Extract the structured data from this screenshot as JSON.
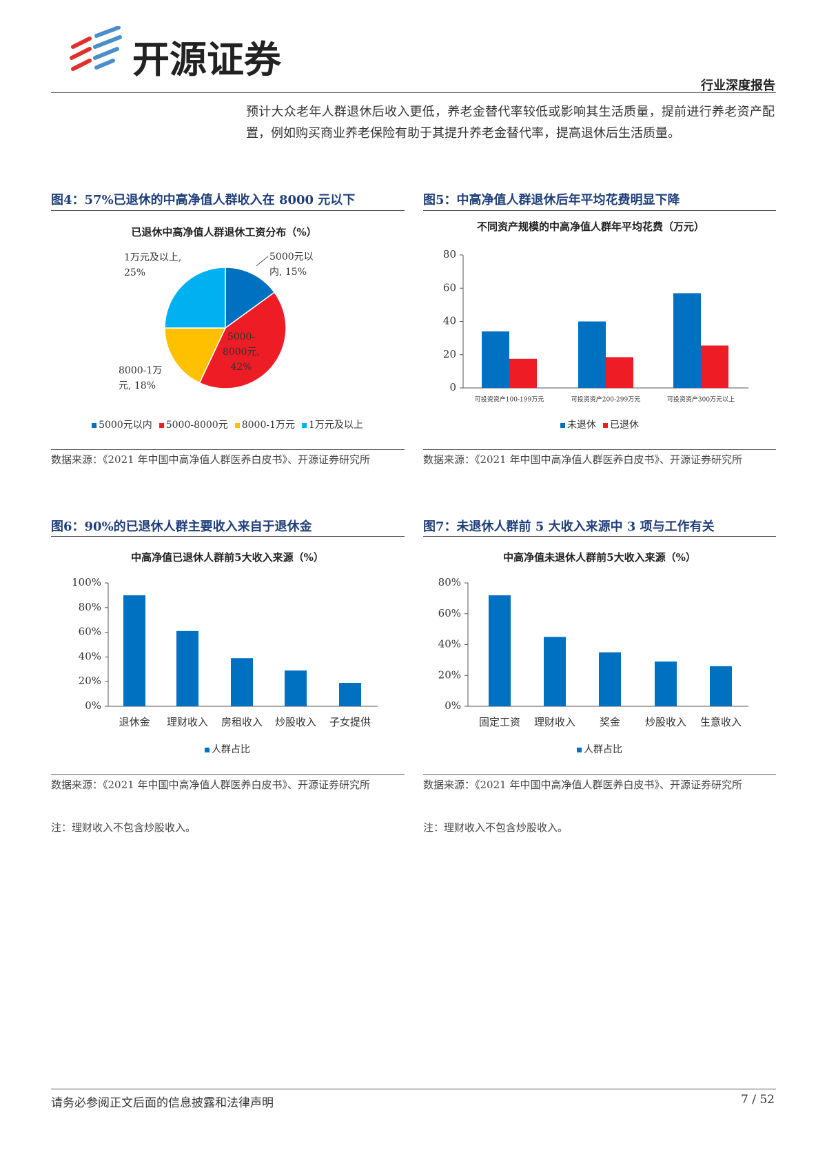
{
  "header": {
    "logo_text": "开源证券",
    "report_type": "行业深度报告"
  },
  "body": {
    "paragraph": "预计大众老年人群退休后收入更低，养老金替代率较低或影响其生活质量，提前进行养老资产配置，例如购买商业养老保险有助于其提升养老金替代率，提高退休后生活质量。"
  },
  "figures": [
    {
      "caption": "图4：57%已退休的中高净值人群收入在 8000 元以下",
      "source": "数据来源：《2021 年中国中高净值人群医养白皮书》、开源证券研究所"
    },
    {
      "caption": "图5：中高净值人群退休后年平均花费明显下降",
      "source": "数据来源：《2021 年中国中高净值人群医养白皮书》、开源证券研究所"
    },
    {
      "caption": "图6：90%的已退休人群主要收入来自于退休金",
      "source": "数据来源：《2021 年中国中高净值人群医养白皮书》、开源证券研究所",
      "note": "注：理财收入不包含炒股收入。"
    },
    {
      "caption": "图7：未退休人群前 5 大收入来源中 3 项与工作有关",
      "source": "数据来源：《2021 年中国中高净值人群医养白皮书》、开源证券研究所",
      "note": "注：理财收入不包含炒股收入。"
    }
  ],
  "chart_data": [
    {
      "type": "pie",
      "title": "已退休中高净值人群退休工资分布（%）",
      "categories": [
        "5000元以内",
        "5000-8000元",
        "8000-1万元",
        "1万元及以上"
      ],
      "values": [
        15,
        42,
        18,
        25
      ],
      "value_labels": [
        "5000元以内, 15%",
        "5000-8000元, 42%",
        "8000-1万元, 18%",
        "1万元及以上, 25%"
      ],
      "colors": [
        "#0070c0",
        "#ee1c25",
        "#ffc000",
        "#00b0f0"
      ]
    },
    {
      "type": "bar",
      "title": "不同资产规模的中高净值人群年平均花费（万元）",
      "categories": [
        "可投资资产100-199万元",
        "可投资资产200-299万元",
        "可投资资产300万元以上"
      ],
      "series": [
        {
          "name": "未退休",
          "color": "#0070c0",
          "values": [
            34,
            40,
            57
          ]
        },
        {
          "name": "已退休",
          "color": "#ee1c25",
          "values": [
            17.5,
            18.5,
            25.5
          ]
        }
      ],
      "ylim": [
        0,
        80
      ],
      "yticks": [
        0,
        20,
        40,
        60,
        80
      ]
    },
    {
      "type": "bar",
      "title": "中高净值已退休人群前5大收入来源（%）",
      "categories": [
        "退休金",
        "理财收入",
        "房租收入",
        "炒股收入",
        "子女提供"
      ],
      "series": [
        {
          "name": "人群占比",
          "color": "#0070c0",
          "values": [
            90,
            61,
            39,
            29,
            19
          ]
        }
      ],
      "ylim": [
        0,
        100
      ],
      "yticks": [
        {
          "value": 0,
          "label": "0%"
        },
        {
          "value": 20,
          "label": "20%"
        },
        {
          "value": 40,
          "label": "40%"
        },
        {
          "value": 60,
          "label": "60%"
        },
        {
          "value": 80,
          "label": "80%"
        },
        {
          "value": 100,
          "label": "100%"
        }
      ]
    },
    {
      "type": "bar",
      "title": "中高净值未退休人群前5大收入来源（%）",
      "categories": [
        "固定工资",
        "理财收入",
        "奖金",
        "炒股收入",
        "生意收入"
      ],
      "series": [
        {
          "name": "人群占比",
          "color": "#0070c0",
          "values": [
            72,
            45,
            35,
            29,
            26
          ]
        }
      ],
      "ylim": [
        0,
        80
      ],
      "yticks": [
        {
          "value": 0,
          "label": "0%"
        },
        {
          "value": 20,
          "label": "20%"
        },
        {
          "value": 40,
          "label": "40%"
        },
        {
          "value": 60,
          "label": "60%"
        },
        {
          "value": 80,
          "label": "80%"
        }
      ]
    }
  ],
  "footer": {
    "disclaimer": "请务必参阅正文后面的信息披露和法律声明",
    "page": "7 / 52"
  }
}
